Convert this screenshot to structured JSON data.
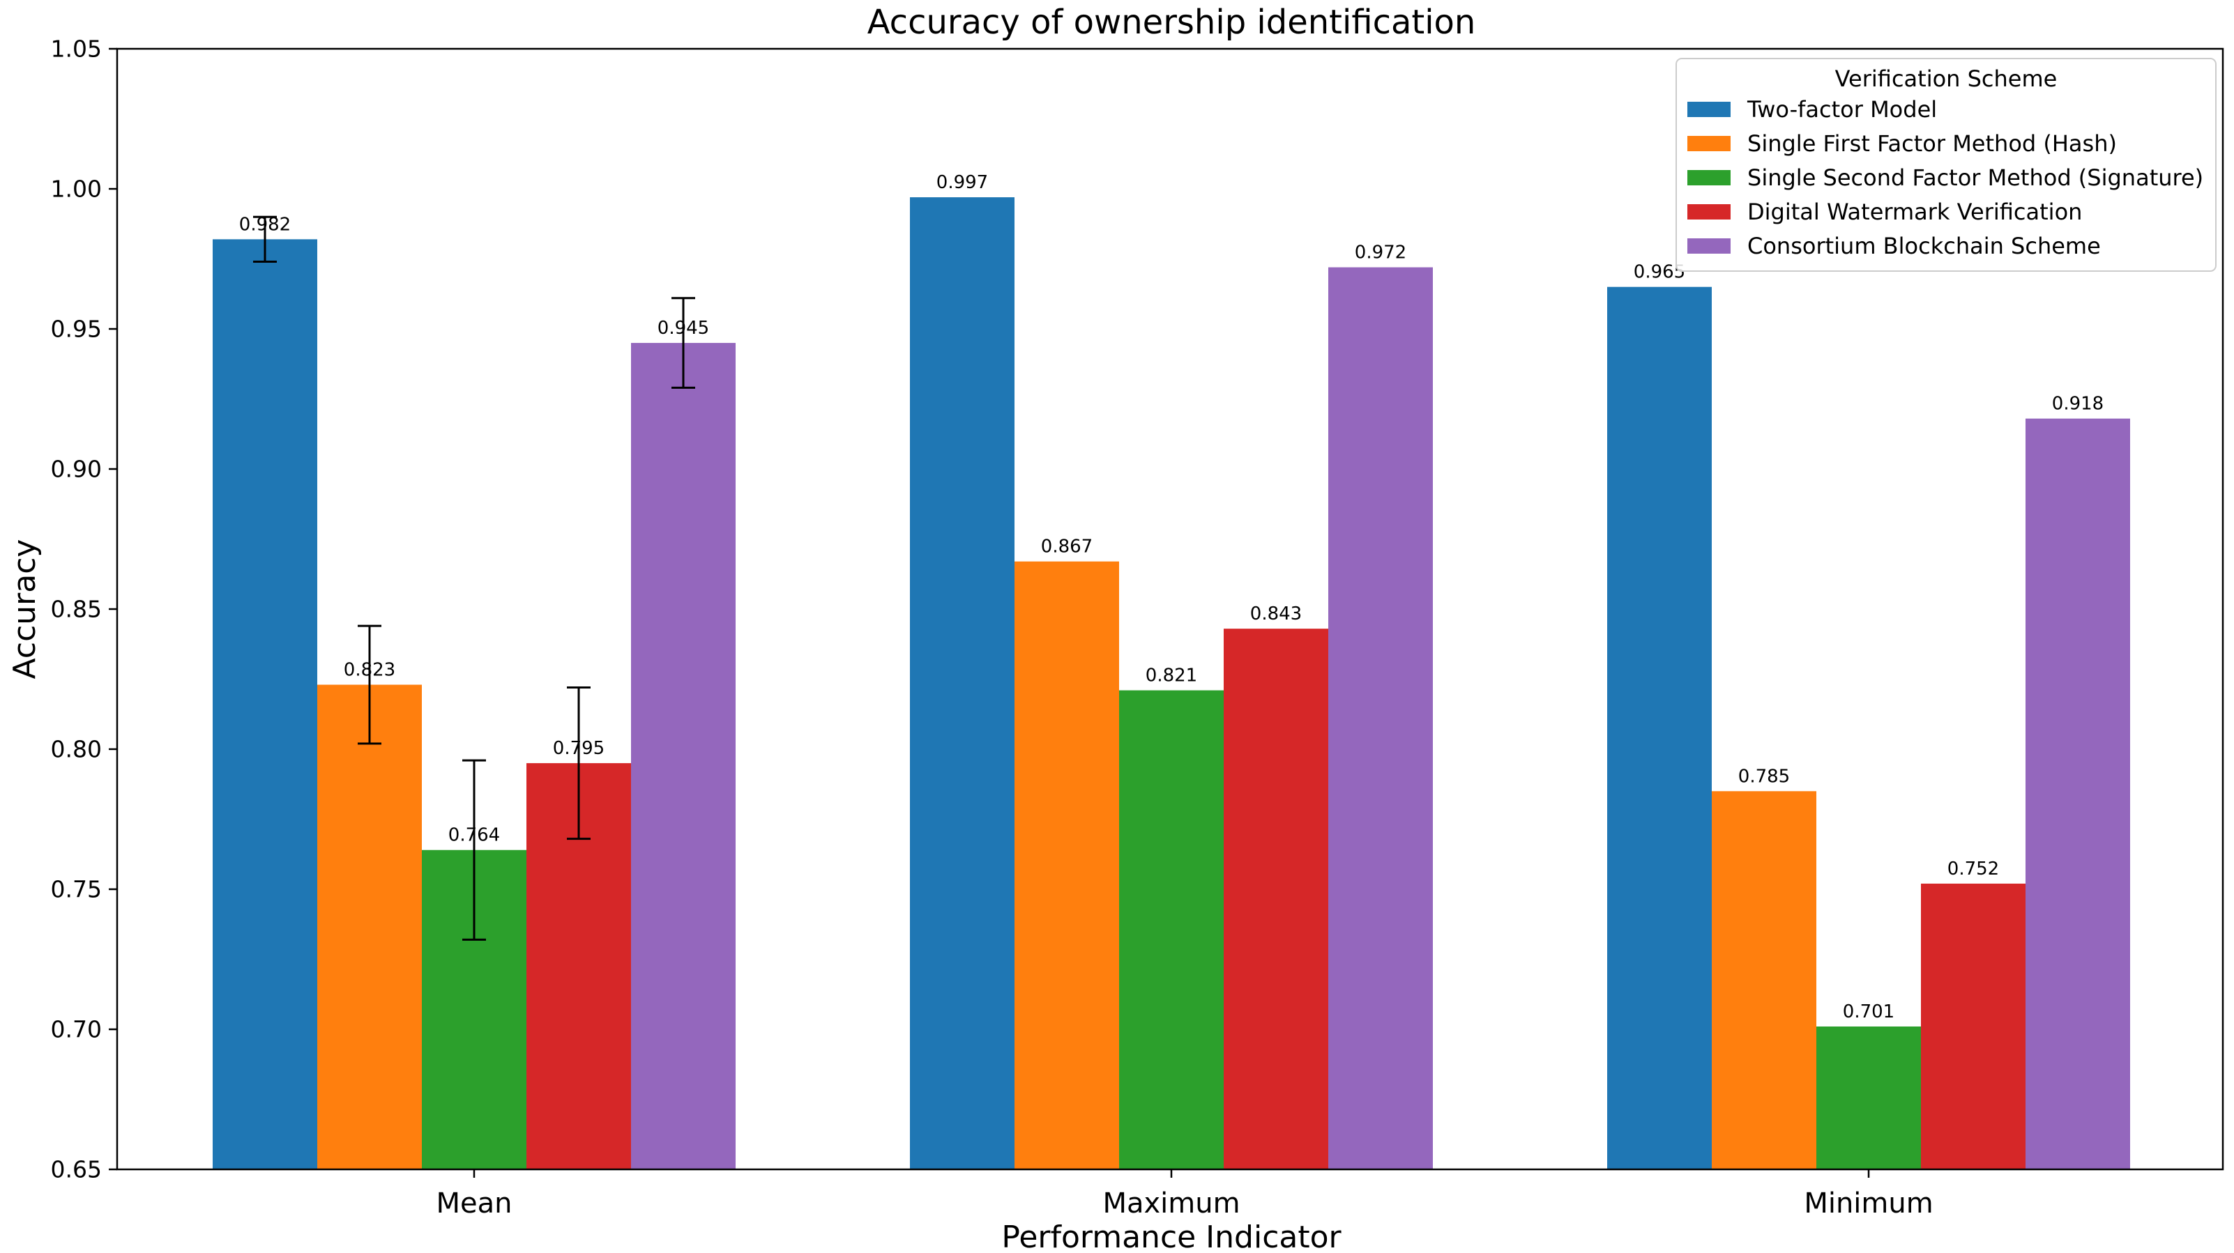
{
  "chart_data": {
    "type": "bar",
    "title": "Accuracy of ownership identification",
    "xlabel": "Performance Indicator",
    "ylabel": "Accuracy",
    "ylim": [
      0.65,
      1.05
    ],
    "yticks": [
      "0.65",
      "0.70",
      "0.75",
      "0.80",
      "0.85",
      "0.90",
      "0.95",
      "1.00",
      "1.05"
    ],
    "categories": [
      "Mean",
      "Maximum",
      "Minimum"
    ],
    "grid": false,
    "legend_position": "top-right",
    "legend_title": "Verification Scheme",
    "series": [
      {
        "name": "Two-factor Model",
        "color": "#1f77b4",
        "values": [
          0.982,
          0.997,
          0.965
        ],
        "labels": [
          "0.982",
          "0.997",
          "0.965"
        ],
        "errors": [
          0.008,
          null,
          null
        ]
      },
      {
        "name": "Single First Factor Method (Hash)",
        "color": "#ff7f0e",
        "values": [
          0.823,
          0.867,
          0.785
        ],
        "labels": [
          "0.823",
          "0.867",
          "0.785"
        ],
        "errors": [
          0.021,
          null,
          null
        ]
      },
      {
        "name": "Single Second Factor Method (Signature)",
        "color": "#2ca02c",
        "values": [
          0.764,
          0.821,
          0.701
        ],
        "labels": [
          "0.764",
          "0.821",
          "0.701"
        ],
        "errors": [
          0.032,
          null,
          null
        ]
      },
      {
        "name": "Digital Watermark Verification",
        "color": "#d62728",
        "values": [
          0.795,
          0.843,
          0.752
        ],
        "labels": [
          "0.795",
          "0.843",
          "0.752"
        ],
        "errors": [
          0.027,
          null,
          null
        ]
      },
      {
        "name": "Consortium Blockchain Scheme",
        "color": "#9467bd",
        "values": [
          0.945,
          0.972,
          0.918
        ],
        "labels": [
          "0.945",
          "0.972",
          "0.918"
        ],
        "errors": [
          0.016,
          null,
          null
        ]
      }
    ]
  }
}
